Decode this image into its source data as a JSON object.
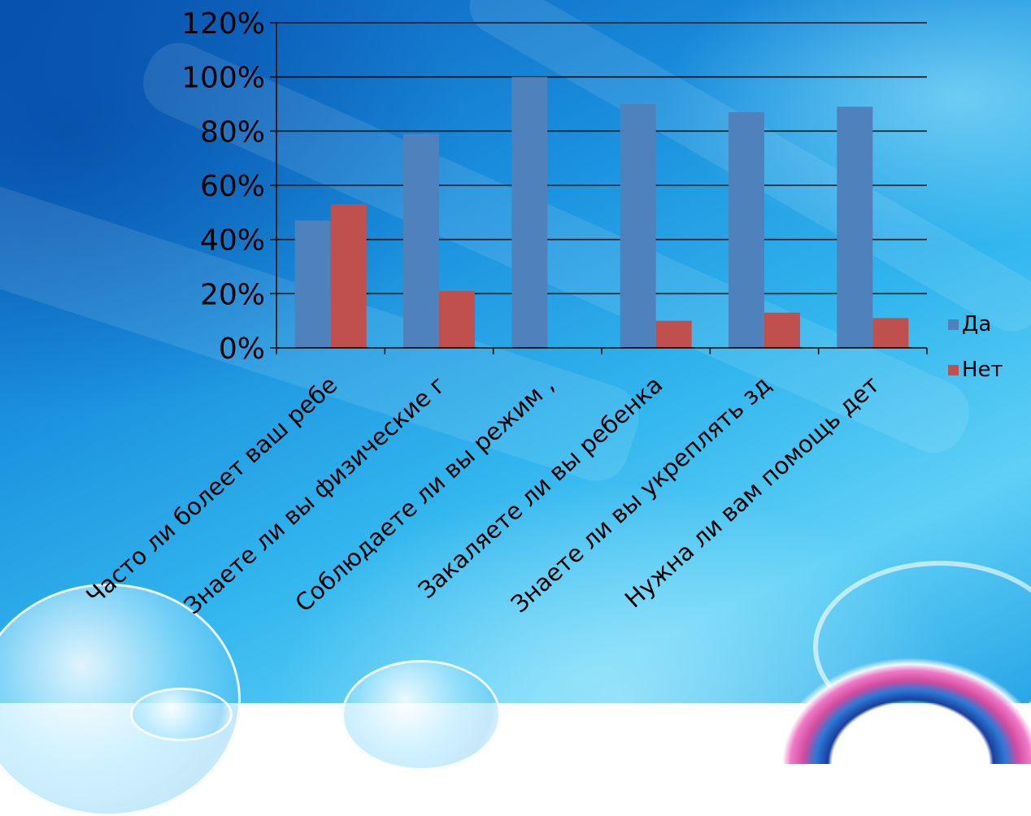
{
  "chart_data": {
    "type": "bar",
    "categories": [
      "Часто ли болеет ваш ребе",
      "Знаете ли вы физические г",
      "Соблюдаете ли вы режим ,",
      "Закаляете ли вы ребенка",
      "Знаете ли вы укреплять зд",
      "Нужна ли вам помощь дет"
    ],
    "series": [
      {
        "name": "Да",
        "values": [
          47,
          79,
          100,
          90,
          87,
          89
        ],
        "color": "#4f81bd"
      },
      {
        "name": "Нет",
        "values": [
          53,
          21,
          0,
          10,
          13,
          11
        ],
        "color": "#c0504d"
      }
    ],
    "y_ticks": [
      "0%",
      "20%",
      "40%",
      "60%",
      "80%",
      "100%",
      "120%"
    ],
    "ylim": [
      0,
      120
    ],
    "y_unit": "%",
    "grid": true,
    "legend_position": "right"
  }
}
